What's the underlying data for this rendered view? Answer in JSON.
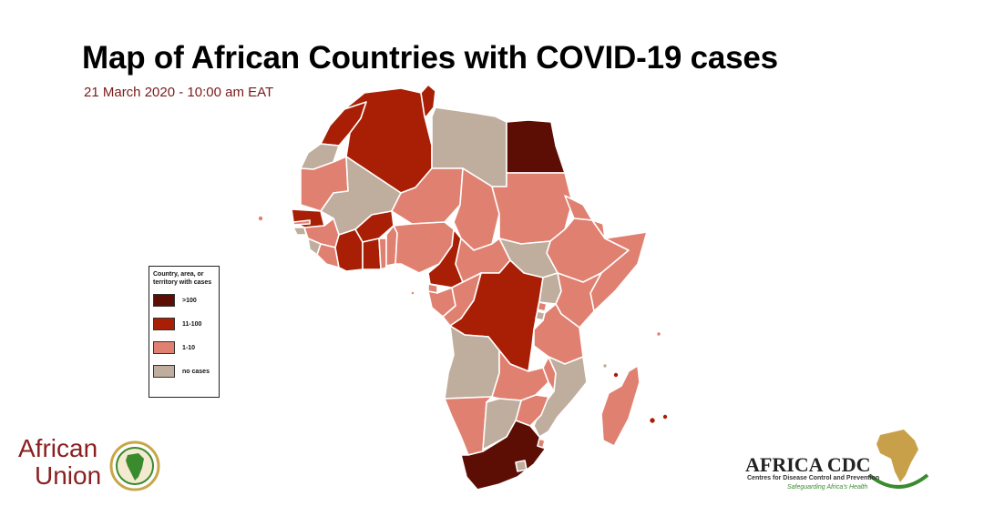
{
  "title": "Map of African Countries with COVID-19 cases",
  "subtitle": "21 March 2020 - 10:00 am EAT",
  "legend": {
    "title": "Country, area, or territory with cases",
    "items": [
      {
        "label": ">100",
        "color": "#5c0e04"
      },
      {
        "label": "11-100",
        "color": "#a81f05"
      },
      {
        "label": "1-10",
        "color": "#e08070"
      },
      {
        "label": "no cases",
        "color": "#bfad9d"
      }
    ]
  },
  "colors": {
    "gt100": "#5c0e04",
    "c11_100": "#a81f05",
    "c1_10": "#e08070",
    "none": "#bfad9d",
    "border": "#ffffff"
  },
  "logos": {
    "african_union": {
      "line1": "African",
      "line2": "Union"
    },
    "africa_cdc": {
      "name": "AFRICA CDC",
      "subtitle": "Centres for Disease Control and Prevention",
      "tagline": "Safeguarding Africa's Health"
    }
  }
}
